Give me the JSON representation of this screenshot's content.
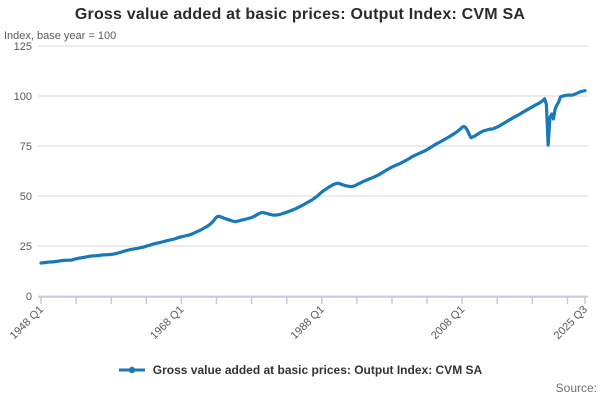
{
  "page": {
    "title": "Gross value added at basic prices: Output Index: CVM SA",
    "unit_label": "Index, base year = 100",
    "source_label": "Source:"
  },
  "legend": {
    "label": "Gross value added at basic prices: Output Index: CVM SA"
  },
  "colors": {
    "line": "#1878ba",
    "grid": "#d9d9d9",
    "axis": "#c3c8e0",
    "muted_text": "#595959"
  },
  "chart_data": {
    "type": "line",
    "title": "Gross value added at basic prices: Output Index: CVM SA",
    "ylabel": "Index, base year = 100",
    "frequency": "quarterly",
    "x_start": "1948 Q1",
    "x_end": "2025 Q3",
    "ylim": [
      0,
      125
    ],
    "y_ticks": [
      0,
      25,
      50,
      75,
      100,
      125
    ],
    "x_tick_labels": [
      "1948 Q1",
      "1968 Q1",
      "1988 Q1",
      "2008 Q1",
      "2025 Q3"
    ],
    "grid": "horizontal",
    "legend_position": "bottom",
    "series": [
      {
        "name": "Gross value added at basic prices: Output Index: CVM SA",
        "values": [
          16.5,
          16.6,
          16.7,
          16.8,
          16.9,
          17.0,
          17.0,
          17.1,
          17.2,
          17.3,
          17.4,
          17.6,
          17.7,
          17.8,
          17.8,
          17.9,
          17.9,
          17.9,
          18.1,
          18.4,
          18.6,
          18.8,
          19.0,
          19.1,
          19.3,
          19.4,
          19.6,
          19.7,
          19.9,
          20.0,
          20.1,
          20.1,
          20.2,
          20.3,
          20.4,
          20.5,
          20.6,
          20.6,
          20.7,
          20.7,
          20.8,
          20.9,
          21.1,
          21.3,
          21.5,
          21.8,
          22.0,
          22.3,
          22.6,
          22.8,
          23.0,
          23.2,
          23.4,
          23.5,
          23.7,
          23.8,
          24.0,
          24.2,
          24.4,
          24.6,
          24.9,
          25.2,
          25.4,
          25.7,
          26.0,
          26.2,
          26.4,
          26.6,
          26.8,
          27.0,
          27.2,
          27.5,
          27.7,
          27.9,
          28.1,
          28.3,
          28.5,
          28.8,
          29.1,
          29.4,
          29.6,
          29.8,
          30.0,
          30.2,
          30.4,
          30.7,
          31.0,
          31.4,
          31.8,
          32.2,
          32.6,
          33.0,
          33.5,
          34.0,
          34.5,
          35.0,
          35.6,
          36.4,
          37.2,
          38.4,
          39.4,
          39.9,
          39.7,
          39.4,
          39.0,
          38.7,
          38.4,
          38.1,
          37.8,
          37.5,
          37.3,
          37.2,
          37.4,
          37.6,
          37.9,
          38.1,
          38.3,
          38.5,
          38.7,
          39.0,
          39.2,
          39.6,
          40.1,
          40.6,
          41.1,
          41.5,
          41.8,
          41.6,
          41.4,
          41.2,
          40.9,
          40.7,
          40.5,
          40.4,
          40.5,
          40.6,
          40.8,
          41.0,
          41.3,
          41.6,
          41.9,
          42.2,
          42.5,
          42.9,
          43.2,
          43.6,
          44.0,
          44.5,
          44.9,
          45.4,
          45.8,
          46.3,
          46.8,
          47.3,
          47.8,
          48.4,
          49.0,
          49.7,
          50.4,
          51.2,
          52.0,
          52.6,
          53.2,
          53.8,
          54.4,
          54.9,
          55.4,
          55.9,
          56.2,
          56.4,
          56.2,
          55.9,
          55.6,
          55.3,
          55.1,
          54.9,
          54.8,
          54.7,
          54.9,
          55.2,
          55.7,
          56.1,
          56.5,
          57.0,
          57.4,
          57.8,
          58.1,
          58.5,
          58.8,
          59.2,
          59.6,
          60.0,
          60.4,
          60.9,
          61.4,
          62.0,
          62.5,
          63.0,
          63.5,
          64.0,
          64.5,
          64.9,
          65.3,
          65.6,
          66.0,
          66.4,
          66.9,
          67.3,
          67.8,
          68.3,
          68.8,
          69.4,
          69.9,
          70.3,
          70.7,
          71.1,
          71.5,
          71.9,
          72.3,
          72.7,
          73.2,
          73.7,
          74.3,
          74.8,
          75.4,
          75.9,
          76.4,
          76.8,
          77.3,
          77.8,
          78.3,
          78.8,
          79.3,
          79.8,
          80.4,
          80.9,
          81.5,
          82.1,
          82.8,
          83.5,
          84.4,
          84.8,
          84.2,
          82.8,
          80.8,
          79.2,
          79.5,
          79.9,
          80.5,
          81.0,
          81.6,
          82.0,
          82.5,
          82.7,
          83.0,
          83.2,
          83.5,
          83.4,
          83.8,
          84.1,
          84.5,
          84.9,
          85.4,
          86.0,
          86.5,
          87.0,
          87.6,
          88.1,
          88.6,
          89.1,
          89.6,
          90.0,
          90.5,
          91.0,
          91.6,
          92.1,
          92.6,
          93.1,
          93.6,
          94.1,
          94.6,
          95.1,
          95.6,
          96.0,
          96.5,
          97.1,
          97.7,
          98.6,
          95.8,
          75.5,
          89.0,
          91.0,
          88.5,
          93.5,
          95.5,
          97.0,
          99.5,
          99.9,
          100.1,
          100.3,
          100.4,
          100.5,
          100.4,
          100.5,
          100.8,
          101.2,
          101.6,
          102.0,
          102.3,
          102.5,
          102.7
        ]
      }
    ]
  }
}
